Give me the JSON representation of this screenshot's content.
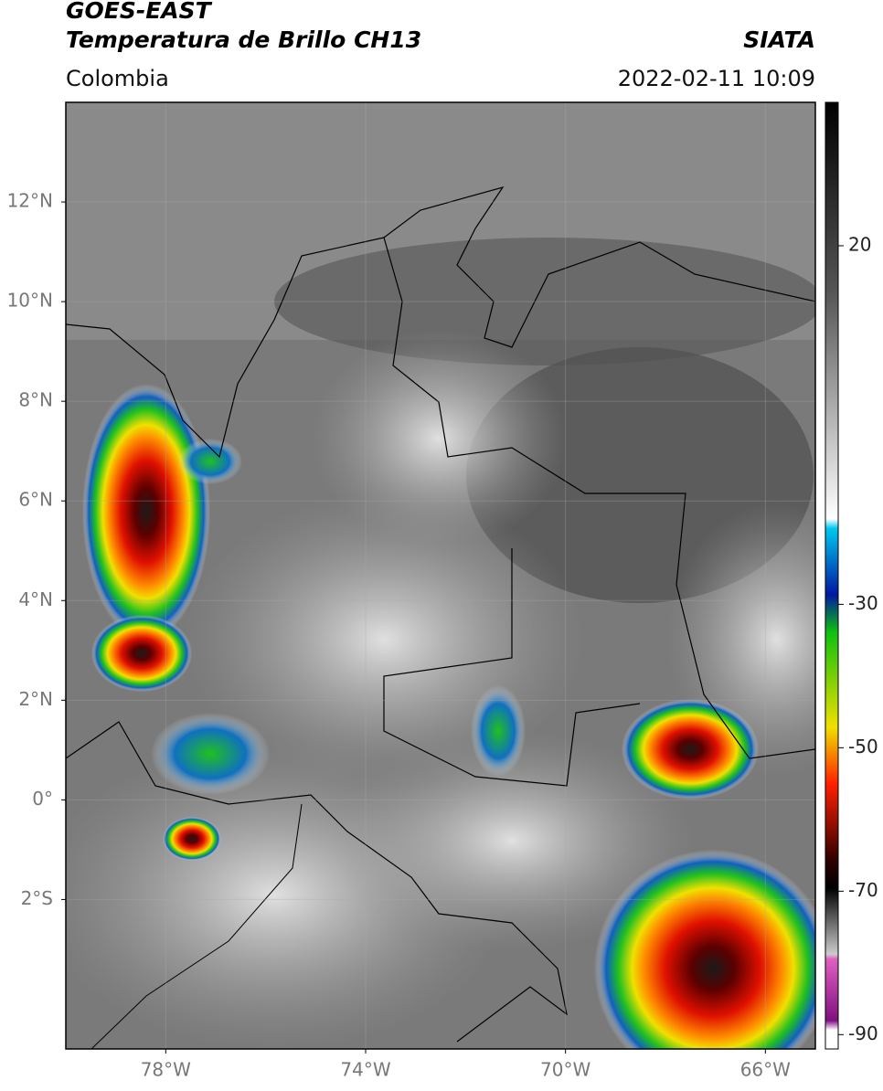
{
  "header": {
    "satellite": "GOES-EAST",
    "product": "Temperatura de Brillo CH13",
    "source": "SIATA",
    "region": "Colombia",
    "datetime": "2022-02-11 10:09"
  },
  "map": {
    "xlim": [
      -80,
      -65
    ],
    "ylim": [
      -5,
      14
    ],
    "xticks": [
      {
        "value": -78,
        "label": "78°W"
      },
      {
        "value": -74,
        "label": "74°W"
      },
      {
        "value": -70,
        "label": "70°W"
      },
      {
        "value": -66,
        "label": "66°W"
      }
    ],
    "yticks": [
      {
        "value": 12,
        "label": "12°N"
      },
      {
        "value": 10,
        "label": "10°N"
      },
      {
        "value": 8,
        "label": "8°N"
      },
      {
        "value": 6,
        "label": "6°N"
      },
      {
        "value": 4,
        "label": "4°N"
      },
      {
        "value": 2,
        "label": "2°N"
      },
      {
        "value": 0,
        "label": "0°"
      },
      {
        "value": -2,
        "label": "2°S"
      }
    ],
    "grid": true
  },
  "colorbar": {
    "lim": [
      -92,
      40
    ],
    "ticks": [
      20,
      -30,
      -50,
      -70,
      -90
    ]
  }
}
